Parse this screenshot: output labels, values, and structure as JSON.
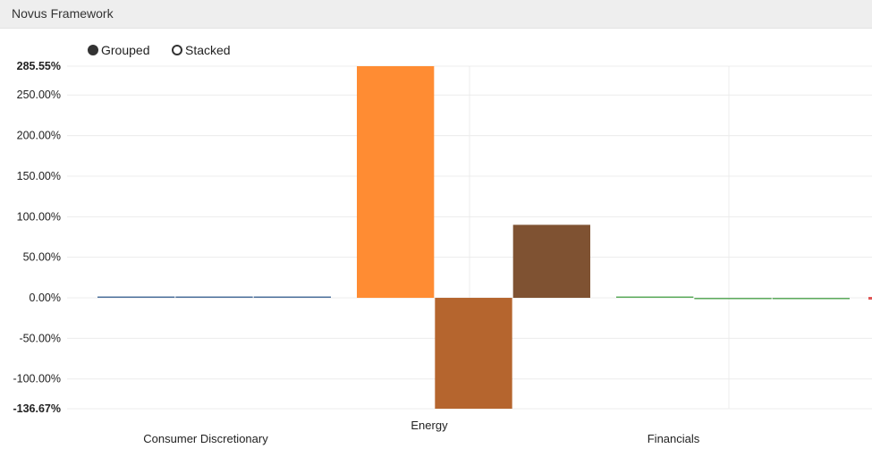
{
  "window": {
    "title": "Novus Framework"
  },
  "controls": {
    "grouped_label": "Grouped",
    "stacked_label": "Stacked",
    "selected": "Grouped"
  },
  "chart_data": {
    "type": "bar",
    "mode": "grouped",
    "categories": [
      "Consumer Discretionary",
      "Energy",
      "Financials"
    ],
    "ylim": [
      -136.67,
      285.55
    ],
    "y_axis_labels": [
      "285.55%",
      "250.00%",
      "200.00%",
      "150.00%",
      "100.00%",
      "50.00%",
      "0.00%",
      "-50.00%",
      "-100.00%",
      "-136.67%"
    ],
    "y_axis_values": [
      285.55,
      250,
      200,
      150,
      100,
      50,
      0,
      -50,
      -100,
      -136.67
    ],
    "y_axis_bold": [
      true,
      false,
      false,
      false,
      false,
      false,
      false,
      false,
      false,
      true
    ],
    "grid": true,
    "groups": [
      {
        "category": "Consumer Discretionary",
        "color": "#4a6f9a",
        "values": [
          0.3,
          0.2,
          0.2
        ]
      },
      {
        "category": "Energy",
        "colors": [
          "#ff8c33",
          "#b5652e",
          "#7f5232"
        ],
        "values": [
          285.55,
          -136.67,
          90
        ]
      },
      {
        "category": "Financials",
        "color": "#5aa95a",
        "values": [
          0.3,
          -0.8,
          -0.9
        ]
      }
    ]
  }
}
